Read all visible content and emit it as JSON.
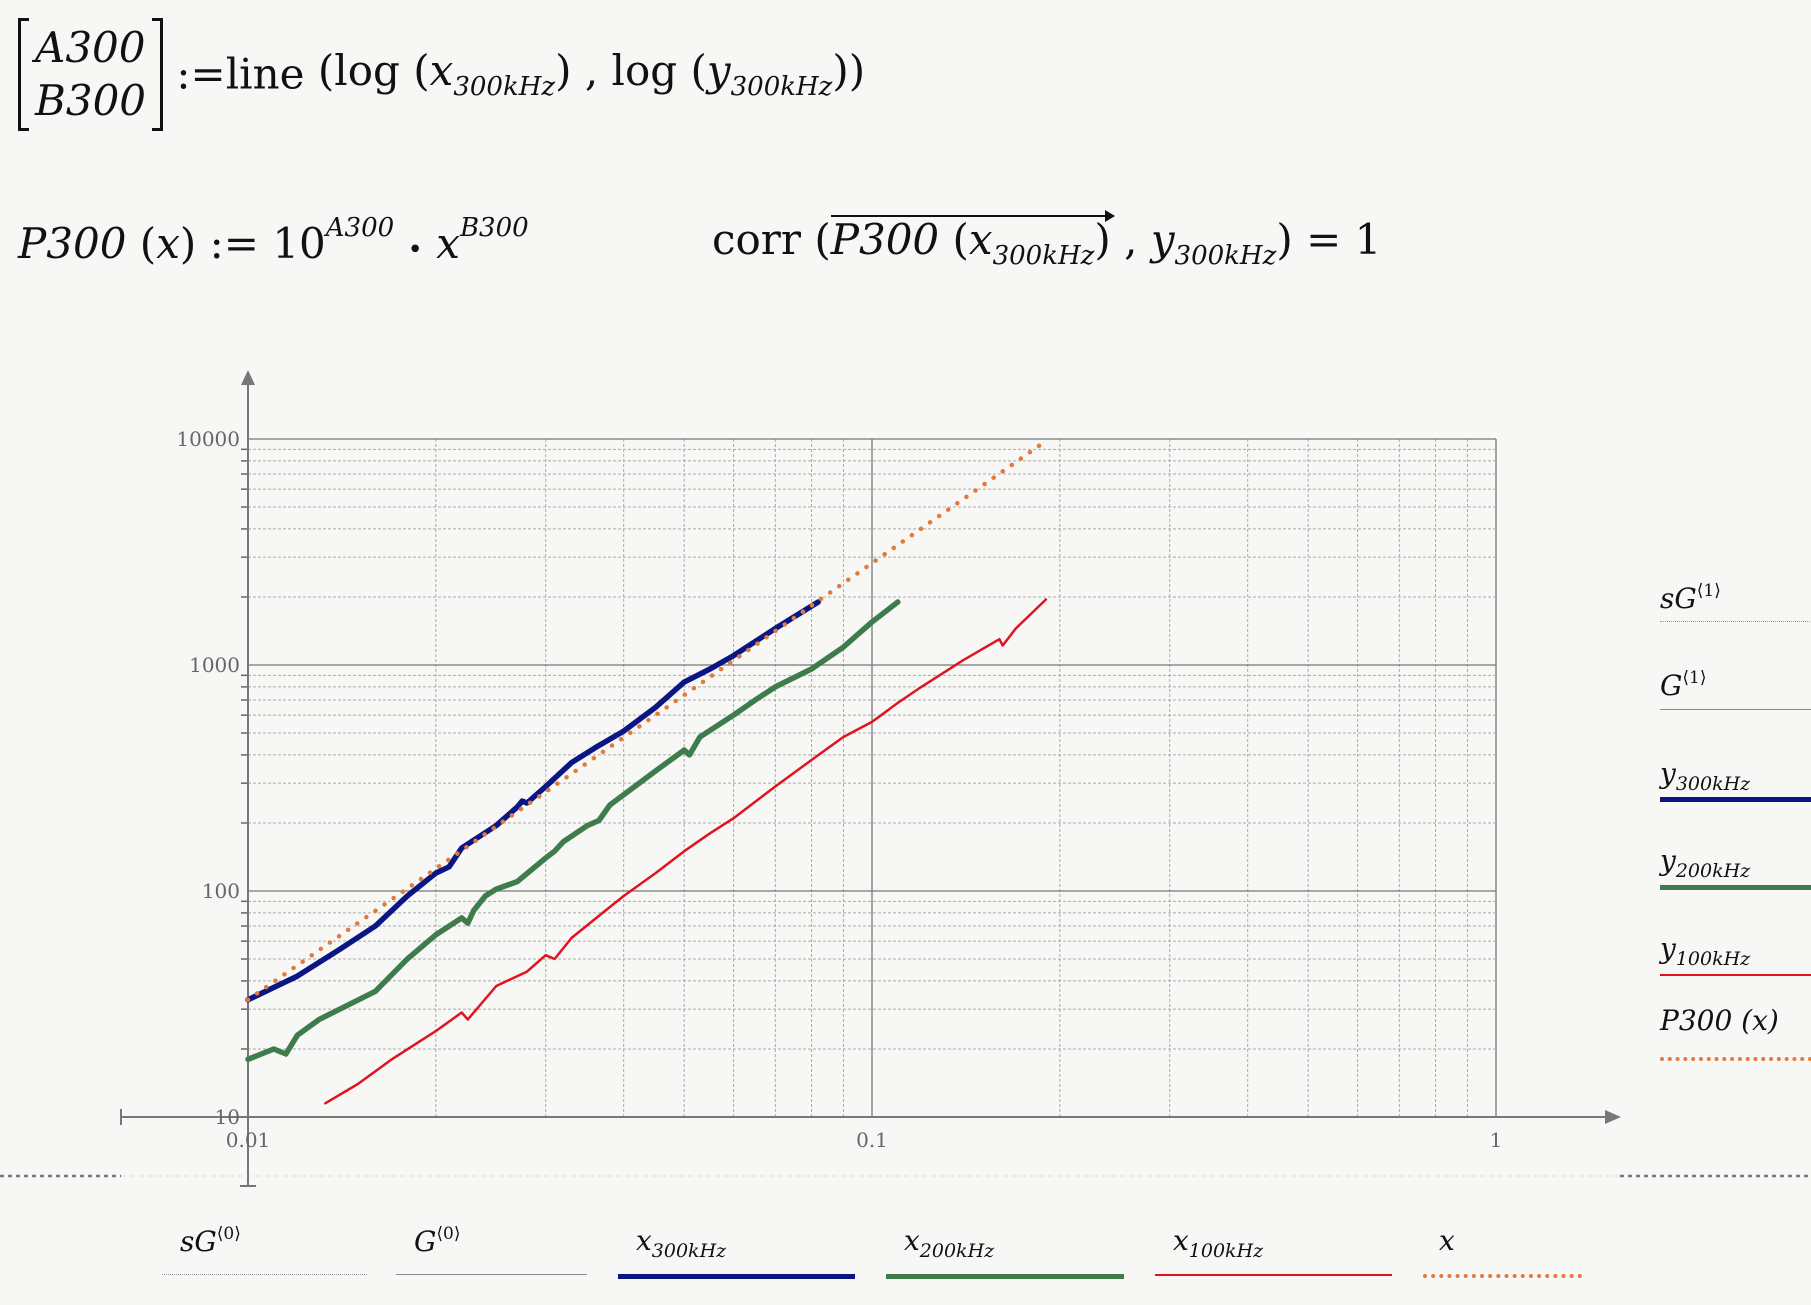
{
  "formulas": {
    "line_fit": {
      "lhs_top": "A300",
      "lhs_bottom": "B300",
      "assign": ":=",
      "func": "line",
      "log": "log",
      "x_var": "x",
      "y_var": "y",
      "sub": "300kHz"
    },
    "power": {
      "name": "P300",
      "arg": "x",
      "assign": ":=",
      "base": "10",
      "exp_a": "A300",
      "dot": "•",
      "var": "x",
      "exp_b": "B300"
    },
    "corr": {
      "func": "corr",
      "inner": "P300",
      "x_var": "x",
      "y_var": "y",
      "sub": "300kHz",
      "result": "= 1"
    }
  },
  "legend_right": [
    {
      "label": "sG",
      "sup": "⟨1⟩",
      "sub": "",
      "style": "dotted-thin",
      "color": "#9a9a9a"
    },
    {
      "label": "G",
      "sup": "⟨1⟩",
      "sub": "",
      "style": "solid-thin",
      "color": "#8a8a8a"
    },
    {
      "label": "y",
      "sup": "",
      "sub": "300kHz",
      "style": "solid",
      "color": "#0b1685"
    },
    {
      "label": "y",
      "sup": "",
      "sub": "200kHz",
      "style": "solid",
      "color": "#3e7c4b"
    },
    {
      "label": "y",
      "sup": "",
      "sub": "100kHz",
      "style": "solid-medium",
      "color": "#e0141e"
    },
    {
      "label": "P300 (x)",
      "sup": "",
      "sub": "",
      "style": "dotted",
      "color": "#e07b3c"
    }
  ],
  "legend_bottom": [
    {
      "label": "sG",
      "sup": "⟨0⟩",
      "sub": "",
      "style": "dotted-thin",
      "color": "#9a9a9a"
    },
    {
      "label": "G",
      "sup": "⟨0⟩",
      "sub": "",
      "style": "solid-thin",
      "color": "#8a8a8a"
    },
    {
      "label": "x",
      "sup": "",
      "sub": "300kHz",
      "style": "solid",
      "color": "#0b1685"
    },
    {
      "label": "x",
      "sup": "",
      "sub": "200kHz",
      "style": "solid",
      "color": "#3e7c4b"
    },
    {
      "label": "x",
      "sup": "",
      "sub": "100kHz",
      "style": "solid-medium",
      "color": "#e0141e"
    },
    {
      "label": "x",
      "sup": "",
      "sub": "",
      "style": "dotted",
      "color": "#e07b3c"
    }
  ],
  "chart_data": {
    "type": "line",
    "x_scale": "log",
    "y_scale": "log",
    "xlim": [
      0.01,
      1
    ],
    "ylim": [
      10,
      10000
    ],
    "grid": true,
    "x_ticks": [
      "0.01",
      "0.1",
      "1"
    ],
    "y_ticks": [
      "10",
      "100",
      "1000",
      "10000"
    ],
    "series": [
      {
        "name": "y300kHz",
        "color": "#0b1685",
        "width": "thick",
        "points": [
          [
            0.01,
            33
          ],
          [
            0.012,
            42
          ],
          [
            0.014,
            55
          ],
          [
            0.016,
            70
          ],
          [
            0.018,
            95
          ],
          [
            0.02,
            120
          ],
          [
            0.021,
            128
          ],
          [
            0.022,
            155
          ],
          [
            0.025,
            195
          ],
          [
            0.027,
            235
          ],
          [
            0.0275,
            250
          ],
          [
            0.028,
            245
          ],
          [
            0.03,
            290
          ],
          [
            0.033,
            370
          ],
          [
            0.036,
            430
          ],
          [
            0.04,
            510
          ],
          [
            0.045,
            650
          ],
          [
            0.05,
            840
          ],
          [
            0.055,
            960
          ],
          [
            0.06,
            1100
          ],
          [
            0.07,
            1450
          ],
          [
            0.082,
            1900
          ]
        ]
      },
      {
        "name": "y200kHz",
        "color": "#3e7c4b",
        "width": "thick",
        "points": [
          [
            0.01,
            18
          ],
          [
            0.011,
            20
          ],
          [
            0.0115,
            19
          ],
          [
            0.012,
            23
          ],
          [
            0.013,
            27
          ],
          [
            0.016,
            36
          ],
          [
            0.018,
            50
          ],
          [
            0.02,
            64
          ],
          [
            0.022,
            76
          ],
          [
            0.0225,
            72
          ],
          [
            0.023,
            82
          ],
          [
            0.024,
            95
          ],
          [
            0.025,
            102
          ],
          [
            0.027,
            110
          ],
          [
            0.03,
            140
          ],
          [
            0.031,
            150
          ],
          [
            0.032,
            165
          ],
          [
            0.035,
            195
          ],
          [
            0.0365,
            205
          ],
          [
            0.038,
            240
          ],
          [
            0.045,
            340
          ],
          [
            0.05,
            420
          ],
          [
            0.051,
            400
          ],
          [
            0.053,
            480
          ],
          [
            0.06,
            600
          ],
          [
            0.065,
            700
          ],
          [
            0.07,
            800
          ],
          [
            0.08,
            960
          ],
          [
            0.09,
            1200
          ],
          [
            0.1,
            1550
          ],
          [
            0.11,
            1900
          ]
        ]
      },
      {
        "name": "y100kHz",
        "color": "#e0141e",
        "width": "medium",
        "points": [
          [
            0.0133,
            11.5
          ],
          [
            0.015,
            14
          ],
          [
            0.017,
            18
          ],
          [
            0.02,
            24
          ],
          [
            0.022,
            29
          ],
          [
            0.0225,
            27
          ],
          [
            0.025,
            38
          ],
          [
            0.028,
            44
          ],
          [
            0.03,
            52
          ],
          [
            0.031,
            50
          ],
          [
            0.033,
            62
          ],
          [
            0.037,
            80
          ],
          [
            0.04,
            95
          ],
          [
            0.045,
            120
          ],
          [
            0.05,
            150
          ],
          [
            0.055,
            180
          ],
          [
            0.06,
            210
          ],
          [
            0.07,
            290
          ],
          [
            0.08,
            380
          ],
          [
            0.09,
            480
          ],
          [
            0.1,
            560
          ],
          [
            0.11,
            680
          ],
          [
            0.12,
            800
          ],
          [
            0.14,
            1050
          ],
          [
            0.16,
            1300
          ],
          [
            0.162,
            1220
          ],
          [
            0.17,
            1450
          ],
          [
            0.19,
            1950
          ]
        ]
      },
      {
        "name": "P300 (x)",
        "color": "#e07b3c",
        "width": "dotted",
        "points": [
          [
            0.01,
            33
          ],
          [
            0.05,
            736
          ],
          [
            0.19,
            9800
          ]
        ]
      }
    ]
  }
}
